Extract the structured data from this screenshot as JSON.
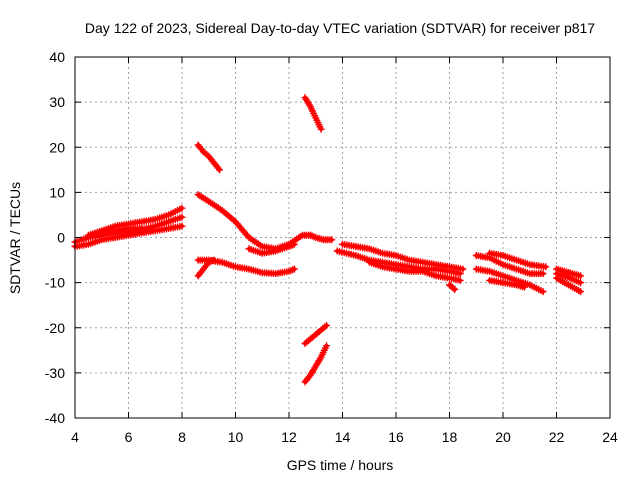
{
  "chart_data": {
    "type": "scatter",
    "title": "Day 122 of 2023, Sidereal Day-to-day VTEC variation (SDTVAR) for receiver p817",
    "xlabel": "GPS time / hours",
    "ylabel": "SDTVAR / TECUs",
    "xlim": [
      4,
      24
    ],
    "ylim": [
      -40,
      40
    ],
    "xticks": [
      4,
      6,
      8,
      10,
      12,
      14,
      16,
      18,
      20,
      22,
      24
    ],
    "yticks": [
      -40,
      -30,
      -20,
      -10,
      0,
      10,
      20,
      30,
      40
    ],
    "grid": true,
    "series_color": "#ff0000",
    "segments": [
      {
        "name": "band-4-8h",
        "x": [
          4.0,
          4.5,
          5.0,
          5.5,
          6.0,
          6.5,
          7.0,
          7.5,
          8.0
        ],
        "y": [
          -1.0,
          0.0,
          0.5,
          1.0,
          1.3,
          1.8,
          2.5,
          3.5,
          4.5
        ]
      },
      {
        "name": "band-4-8h-lower",
        "x": [
          4.0,
          4.5,
          5.0,
          5.5,
          6.0,
          6.5,
          7.0,
          7.5,
          8.0
        ],
        "y": [
          -2.0,
          -1.5,
          -0.5,
          0.0,
          0.5,
          1.0,
          1.5,
          2.0,
          2.5
        ]
      },
      {
        "name": "band-4-8h-upper",
        "x": [
          4.5,
          5.0,
          5.5,
          6.0,
          6.5,
          7.0,
          7.5,
          8.0
        ],
        "y": [
          0.5,
          1.5,
          2.5,
          3.0,
          3.5,
          4.0,
          5.0,
          6.5
        ]
      },
      {
        "name": "band-5-6h-mid",
        "x": [
          5.0,
          5.5,
          6.0,
          6.5
        ],
        "y": [
          1.0,
          1.5,
          2.0,
          2.0
        ]
      },
      {
        "name": "arc-8.6-9.4h-high",
        "x": [
          8.6,
          8.8,
          9.0,
          9.2,
          9.4
        ],
        "y": [
          20.5,
          19.0,
          18.0,
          16.5,
          15.0
        ]
      },
      {
        "name": "curve-8.6-12.8h",
        "x": [
          8.6,
          9.0,
          9.5,
          10.0,
          10.5,
          11.0,
          11.5,
          12.0,
          12.5,
          12.8
        ],
        "y": [
          9.5,
          8.0,
          6.0,
          3.5,
          0.0,
          -2.0,
          -2.5,
          -1.5,
          0.5,
          0.5
        ]
      },
      {
        "name": "curve-8.6-12.2h-lower",
        "x": [
          8.6,
          9.0,
          9.5,
          10.0,
          10.5,
          11.0,
          11.5,
          12.0,
          12.2
        ],
        "y": [
          -5.0,
          -5.0,
          -5.5,
          -6.5,
          -7.0,
          -7.8,
          -8.0,
          -7.5,
          -7.0
        ]
      },
      {
        "name": "dip-8.6-9.2h",
        "x": [
          8.6,
          8.8,
          9.0,
          9.2
        ],
        "y": [
          -8.5,
          -7.0,
          -5.5,
          -5.0
        ]
      },
      {
        "name": "bump-10.5-12.2h",
        "x": [
          10.5,
          11.0,
          11.5,
          12.0,
          12.2
        ],
        "y": [
          -2.5,
          -3.5,
          -3.0,
          -2.0,
          -1.5
        ]
      },
      {
        "name": "arc-12.6-13.2h-high",
        "x": [
          12.6,
          12.8,
          13.0,
          13.2
        ],
        "y": [
          31.0,
          29.0,
          26.5,
          24.0
        ]
      },
      {
        "name": "arc-12.6-13.4h-neg-a",
        "x": [
          12.6,
          12.8,
          13.0,
          13.2,
          13.4
        ],
        "y": [
          -23.5,
          -22.5,
          -21.5,
          -20.5,
          -19.5
        ]
      },
      {
        "name": "arc-12.6-13.4h-neg-b",
        "x": [
          12.6,
          12.8,
          13.0,
          13.2,
          13.4
        ],
        "y": [
          -32.0,
          -30.5,
          -28.5,
          -26.5,
          -24.0
        ]
      },
      {
        "name": "flat-12.8-13.6h",
        "x": [
          12.8,
          13.0,
          13.3,
          13.6
        ],
        "y": [
          0.5,
          0.0,
          -0.5,
          -0.5
        ]
      },
      {
        "name": "band-13.8-18.4h",
        "x": [
          13.8,
          14.5,
          15.0,
          15.5,
          16.0,
          16.5,
          17.0,
          17.5,
          18.0,
          18.4
        ],
        "y": [
          -3.0,
          -4.0,
          -5.0,
          -5.5,
          -6.0,
          -6.5,
          -7.0,
          -7.0,
          -7.5,
          -8.0
        ]
      },
      {
        "name": "band-14-18.5h-upper",
        "x": [
          14.0,
          14.5,
          15.0,
          15.5,
          16.0,
          16.5,
          17.0,
          17.5,
          18.0,
          18.5
        ],
        "y": [
          -1.5,
          -2.0,
          -2.5,
          -3.5,
          -4.0,
          -5.0,
          -5.5,
          -6.0,
          -6.5,
          -7.0
        ]
      },
      {
        "name": "band-15-18h-lower",
        "x": [
          15.0,
          15.5,
          16.0,
          16.5,
          17.0,
          17.5,
          18.0,
          18.4
        ],
        "y": [
          -5.5,
          -6.5,
          -7.0,
          -7.5,
          -7.5,
          -8.5,
          -9.0,
          -9.5
        ]
      },
      {
        "name": "blip-18.1h",
        "x": [
          18.0,
          18.1,
          18.2
        ],
        "y": [
          -10.5,
          -11.0,
          -11.5
        ]
      },
      {
        "name": "band-19-21.5h",
        "x": [
          19.0,
          19.5,
          20.0,
          20.5,
          21.0,
          21.5
        ],
        "y": [
          -4.0,
          -4.5,
          -6.0,
          -7.0,
          -8.0,
          -8.0
        ]
      },
      {
        "name": "band-19-21.5h-lower",
        "x": [
          19.0,
          19.5,
          20.0,
          20.5,
          21.0,
          21.5
        ],
        "y": [
          -7.0,
          -7.5,
          -8.5,
          -9.5,
          -10.5,
          -12.0
        ]
      },
      {
        "name": "band-19.5-20.8h-short",
        "x": [
          19.5,
          20.0,
          20.5,
          20.8
        ],
        "y": [
          -9.5,
          -10.0,
          -10.5,
          -11.0
        ]
      },
      {
        "name": "band-19.5-21.6h-mid",
        "x": [
          19.5,
          20.0,
          20.5,
          21.0,
          21.6
        ],
        "y": [
          -3.5,
          -4.0,
          -5.0,
          -6.0,
          -6.5
        ]
      },
      {
        "name": "band-22-22.9h",
        "x": [
          22.0,
          22.3,
          22.6,
          22.9
        ],
        "y": [
          -7.0,
          -7.5,
          -8.0,
          -8.5
        ]
      },
      {
        "name": "band-22-22.9h-lower",
        "x": [
          22.0,
          22.3,
          22.6,
          22.9
        ],
        "y": [
          -9.0,
          -10.0,
          -11.0,
          -12.0
        ]
      },
      {
        "name": "band-22-22.9h-mid",
        "x": [
          22.0,
          22.5,
          22.9
        ],
        "y": [
          -8.0,
          -9.0,
          -10.0
        ]
      }
    ]
  }
}
